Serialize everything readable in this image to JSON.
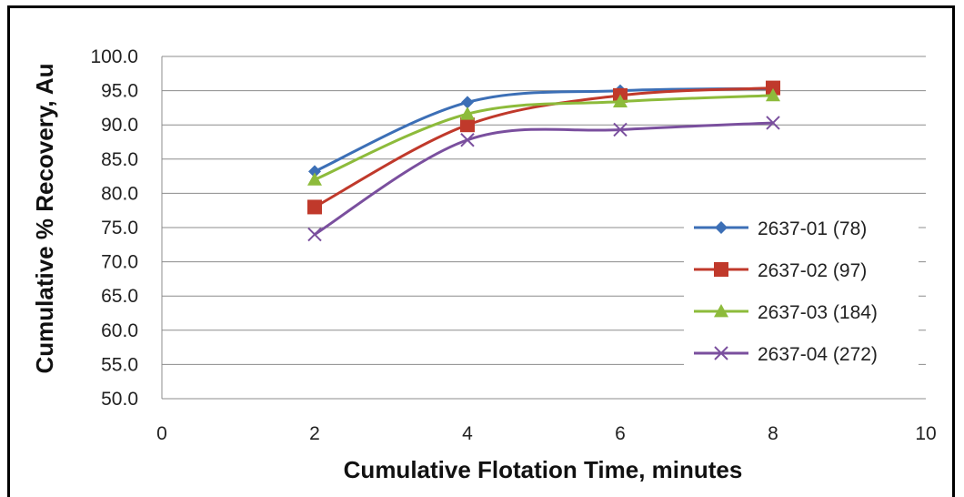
{
  "chart_data": {
    "type": "line",
    "title": "",
    "xlabel": "Cumulative Flotation Time, minutes",
    "ylabel": "Cumulative % Recovery, Au",
    "xlim": [
      0,
      10
    ],
    "ylim": [
      50,
      100
    ],
    "x_ticks": [
      "0",
      "2",
      "4",
      "6",
      "8",
      "10"
    ],
    "y_ticks": [
      "50.0",
      "55.0",
      "60.0",
      "65.0",
      "70.0",
      "75.0",
      "80.0",
      "85.0",
      "90.0",
      "95.0",
      "100.0"
    ],
    "grid": "horizontal",
    "legend_position": "right",
    "x": [
      2,
      4,
      6,
      8
    ],
    "series": [
      {
        "name": "2637-01 (78)",
        "values": [
          83.2,
          93.3,
          95.0,
          95.3
        ],
        "color": "#3c6fb6",
        "marker": "diamond"
      },
      {
        "name": "2637-02 (97)",
        "values": [
          78.0,
          90.0,
          94.3,
          95.4
        ],
        "color": "#c0392b",
        "marker": "square"
      },
      {
        "name": "2637-03 (184)",
        "values": [
          82.0,
          91.6,
          93.4,
          94.3
        ],
        "color": "#8dbb3b",
        "marker": "triangle"
      },
      {
        "name": "2637-04 (272)",
        "values": [
          74.0,
          87.8,
          89.3,
          90.3
        ],
        "color": "#7a4f9e",
        "marker": "x"
      }
    ]
  }
}
